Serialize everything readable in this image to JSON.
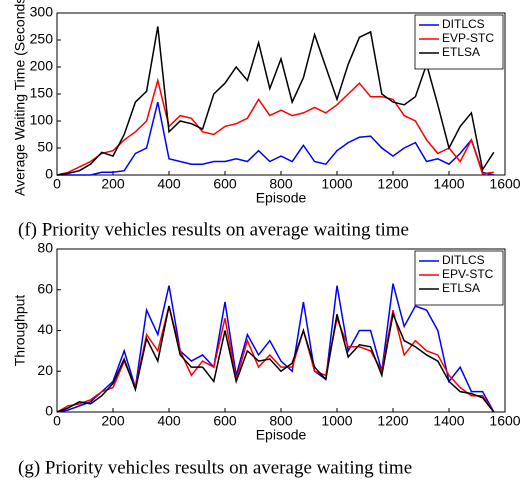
{
  "chart_data": [
    {
      "type": "line",
      "caption": "(f) Priority vehicles results on average waiting time",
      "xlabel": "Episode",
      "ylabel": "Average Waiting Time (Seconds)",
      "x": [
        0,
        40,
        80,
        120,
        160,
        200,
        240,
        280,
        320,
        360,
        400,
        440,
        480,
        520,
        560,
        600,
        640,
        680,
        720,
        760,
        800,
        840,
        880,
        920,
        960,
        1000,
        1040,
        1080,
        1120,
        1160,
        1200,
        1240,
        1280,
        1320,
        1360,
        1400,
        1440,
        1480,
        1520,
        1560
      ],
      "xlim": [
        0,
        1600
      ],
      "xticks": [
        0,
        200,
        400,
        600,
        800,
        1000,
        1200,
        1400,
        1600
      ],
      "ylim": [
        0,
        300
      ],
      "yticks": [
        0,
        50,
        100,
        150,
        200,
        250,
        300
      ],
      "legend": "upper right",
      "series": [
        {
          "name": "DITLCS",
          "color": "#0000ff",
          "values": [
            0,
            0,
            0,
            0,
            5,
            5,
            8,
            40,
            50,
            135,
            30,
            25,
            20,
            20,
            25,
            25,
            30,
            25,
            45,
            25,
            35,
            25,
            55,
            25,
            20,
            45,
            60,
            70,
            72,
            50,
            35,
            50,
            60,
            25,
            30,
            20,
            40,
            65,
            5,
            0
          ]
        },
        {
          "name": "EVP-STC",
          "color": "#ff0000",
          "values": [
            0,
            5,
            15,
            25,
            40,
            45,
            65,
            80,
            100,
            175,
            90,
            110,
            105,
            80,
            75,
            90,
            95,
            105,
            140,
            110,
            120,
            110,
            115,
            125,
            115,
            130,
            150,
            170,
            145,
            145,
            140,
            110,
            100,
            65,
            40,
            50,
            25,
            65,
            2,
            5
          ]
        },
        {
          "name": "ETLSA",
          "color": "#000000",
          "values": [
            0,
            3,
            8,
            20,
            42,
            35,
            75,
            135,
            155,
            275,
            80,
            100,
            95,
            85,
            150,
            170,
            200,
            175,
            245,
            160,
            215,
            135,
            180,
            260,
            200,
            140,
            205,
            255,
            265,
            150,
            135,
            130,
            145,
            205,
            130,
            50,
            90,
            115,
            10,
            42
          ]
        }
      ]
    },
    {
      "type": "line",
      "caption": "(g) Priority vehicles results on average waiting time",
      "xlabel": "Episode",
      "ylabel": "Throughput",
      "x": [
        0,
        40,
        80,
        120,
        160,
        200,
        240,
        280,
        320,
        360,
        400,
        440,
        480,
        520,
        560,
        600,
        640,
        680,
        720,
        760,
        800,
        840,
        880,
        920,
        960,
        1000,
        1040,
        1080,
        1120,
        1160,
        1200,
        1240,
        1280,
        1320,
        1360,
        1400,
        1440,
        1480,
        1520,
        1560
      ],
      "xlim": [
        0,
        1600
      ],
      "xticks": [
        0,
        200,
        400,
        600,
        800,
        1000,
        1200,
        1400,
        1600
      ],
      "ylim": [
        0,
        80
      ],
      "yticks": [
        0,
        20,
        40,
        60,
        80
      ],
      "legend": "upper right",
      "series": [
        {
          "name": "DITLCS",
          "color": "#0000ff",
          "values": [
            0,
            1,
            3,
            5,
            10,
            15,
            30,
            12,
            50,
            38,
            62,
            30,
            25,
            28,
            22,
            54,
            18,
            38,
            28,
            35,
            25,
            20,
            54,
            20,
            16,
            62,
            30,
            40,
            40,
            20,
            63,
            42,
            52,
            50,
            40,
            15,
            22,
            10,
            10,
            0
          ]
        },
        {
          "name": "EPV-STC",
          "color": "#ff0000",
          "values": [
            0,
            3,
            4,
            6,
            10,
            12,
            25,
            12,
            38,
            30,
            52,
            30,
            18,
            25,
            22,
            46,
            16,
            35,
            22,
            28,
            22,
            22,
            40,
            20,
            18,
            46,
            32,
            32,
            30,
            20,
            50,
            28,
            35,
            30,
            28,
            18,
            12,
            8,
            8,
            0
          ]
        },
        {
          "name": "ETLSA",
          "color": "#000000",
          "values": [
            0,
            2,
            5,
            4,
            8,
            14,
            26,
            11,
            36,
            25,
            52,
            28,
            22,
            22,
            15,
            40,
            15,
            30,
            25,
            26,
            20,
            24,
            40,
            22,
            16,
            48,
            27,
            33,
            32,
            18,
            48,
            35,
            32,
            28,
            25,
            15,
            10,
            9,
            7,
            0
          ]
        }
      ]
    }
  ]
}
